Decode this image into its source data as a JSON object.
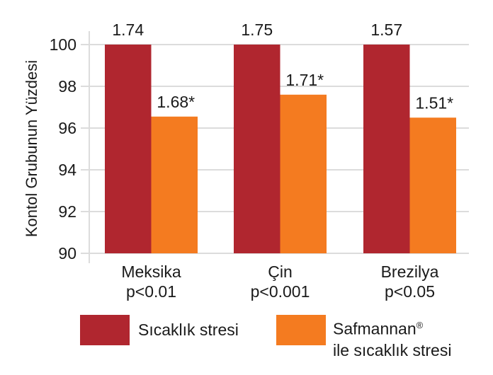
{
  "chart_data": {
    "type": "bar",
    "title": "",
    "xlabel": "",
    "ylabel": "Kontol Grubunun Yüzdesi",
    "ylim": [
      90,
      100
    ],
    "yticks": [
      90,
      92,
      94,
      96,
      98,
      100
    ],
    "grid": true,
    "categories": [
      {
        "name": "Meksika",
        "pvalue": "p<0.01"
      },
      {
        "name": "Çin",
        "pvalue": "p<0.001"
      },
      {
        "name": "Brezilya",
        "pvalue": "p<0.05"
      }
    ],
    "series": [
      {
        "name": "Sıcaklık stresi",
        "color": "#B0262F",
        "values": [
          100,
          100,
          100
        ],
        "labels": [
          "1.74",
          "1.75",
          "1.57"
        ]
      },
      {
        "name": "Safmannan® ile sıcaklık stresi",
        "name_line1": "Safmannan",
        "name_sup": "®",
        "name_line2": "ile sıcaklık stresi",
        "color": "#F47B20",
        "values": [
          96.55,
          97.6,
          96.5
        ],
        "labels": [
          "1.68*",
          "1.71*",
          "1.51*"
        ]
      }
    ],
    "legend_position": "bottom"
  }
}
